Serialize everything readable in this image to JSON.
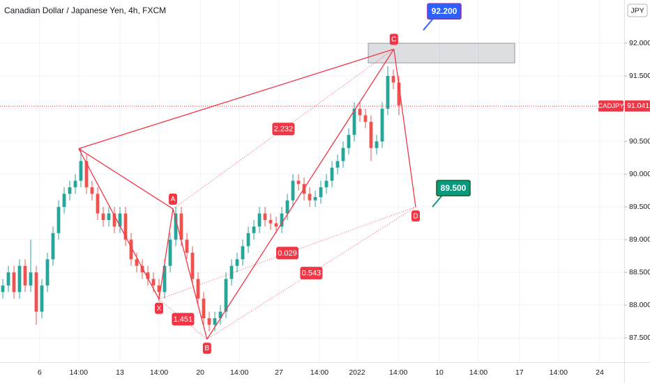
{
  "chart_data": {
    "type": "candlestick",
    "title": "Canadian Dollar / Japanese Yen, 4h, FXCM",
    "currency": "JPY",
    "up_color": "#26a69a",
    "down_color": "#ef5350",
    "xlim": [
      -0.5,
      111.375
    ],
    "xticks": [
      {
        "value": 6.6,
        "label": "6"
      },
      {
        "value": 13.6,
        "label": "14:00"
      },
      {
        "value": 21,
        "label": "13"
      },
      {
        "value": 28,
        "label": "14:00"
      },
      {
        "value": 35.4,
        "label": "20"
      },
      {
        "value": 42.4,
        "label": "14:00"
      },
      {
        "value": 49.5,
        "label": "27"
      },
      {
        "value": 56.75,
        "label": "14:00"
      },
      {
        "value": 63.5,
        "label": "2022"
      },
      {
        "value": 70.9,
        "label": "14:00"
      },
      {
        "value": 78.25,
        "label": "10"
      },
      {
        "value": 85.25,
        "label": "14:00"
      },
      {
        "value": 92.6,
        "label": "17"
      },
      {
        "value": 99.6,
        "label": "14:00"
      },
      {
        "value": 107,
        "label": "24"
      }
    ],
    "ylim": [
      87.13,
      92.66
    ],
    "yticks": [
      {
        "value": 87.5,
        "label": "87.500"
      },
      {
        "value": 88,
        "label": "88.000"
      },
      {
        "value": 88.5,
        "label": "88.500"
      },
      {
        "value": 89,
        "label": "89.000"
      },
      {
        "value": 89.5,
        "label": "89.500"
      },
      {
        "value": 90,
        "label": "90.000"
      },
      {
        "value": 90.5,
        "label": "90.500"
      },
      {
        "value": 91,
        "label": "91.000"
      },
      {
        "value": 91.5,
        "label": "91.500"
      },
      {
        "value": 92,
        "label": "92.000"
      }
    ],
    "x": [
      0,
      1,
      2,
      3,
      4,
      5,
      6,
      7,
      8,
      9,
      10,
      11,
      12,
      13,
      14,
      15,
      16,
      17,
      18,
      19,
      20,
      21,
      22,
      23,
      24,
      25,
      26,
      27,
      28,
      29,
      30,
      31,
      32,
      33,
      34,
      35,
      36,
      37,
      38,
      39,
      40,
      41,
      42,
      43,
      44,
      45,
      46,
      47,
      48,
      49,
      50,
      51,
      52,
      53,
      54,
      55,
      56,
      57,
      58,
      59,
      60,
      61,
      62,
      63,
      64,
      65,
      66,
      67,
      68,
      69,
      70,
      71
    ],
    "open": [
      88.2,
      88.3,
      88.5,
      88.2,
      88.6,
      88.3,
      88.5,
      87.9,
      88.3,
      88.7,
      89.1,
      89.5,
      89.7,
      89.8,
      89.9,
      90.2,
      89.8,
      89.7,
      89.4,
      89.3,
      89.4,
      89.2,
      89.4,
      89.0,
      88.7,
      88.6,
      88.5,
      88.4,
      88.3,
      88.2,
      88.6,
      89.0,
      89.4,
      89.0,
      88.8,
      88.4,
      88.1,
      87.8,
      87.7,
      87.8,
      87.9,
      88.4,
      88.6,
      88.7,
      88.9,
      89.1,
      89.2,
      89.4,
      89.3,
      89.25,
      89.2,
      89.4,
      89.6,
      89.9,
      89.85,
      89.7,
      89.6,
      89.65,
      89.8,
      89.9,
      90.1,
      90.2,
      90.4,
      90.6,
      91.0,
      90.9,
      90.8,
      90.4,
      90.5,
      91.0,
      91.5,
      91.4
    ],
    "high": [
      88.4,
      88.6,
      88.6,
      88.7,
      88.7,
      89.0,
      88.6,
      88.4,
      88.8,
      89.2,
      89.6,
      89.8,
      89.9,
      90.0,
      90.4,
      90.3,
      89.9,
      89.8,
      89.5,
      89.5,
      89.5,
      89.5,
      89.5,
      89.1,
      88.8,
      88.7,
      88.6,
      88.5,
      88.4,
      88.7,
      89.1,
      89.5,
      89.5,
      89.1,
      88.9,
      88.5,
      88.2,
      87.9,
      87.9,
      88.0,
      88.5,
      88.7,
      88.8,
      89.0,
      89.2,
      89.3,
      89.5,
      89.5,
      89.4,
      89.35,
      89.5,
      89.7,
      90.0,
      90.0,
      89.95,
      89.8,
      89.75,
      89.9,
      90.0,
      90.2,
      90.3,
      90.5,
      90.7,
      91.1,
      91.1,
      91.0,
      90.9,
      90.6,
      91.1,
      91.65,
      91.6,
      91.5
    ],
    "low": [
      88.1,
      88.2,
      88.1,
      88.1,
      88.2,
      88.2,
      87.7,
      87.8,
      88.2,
      88.6,
      89.0,
      89.4,
      89.6,
      89.7,
      89.8,
      89.7,
      89.6,
      89.3,
      89.2,
      89.2,
      89.1,
      89.1,
      88.9,
      88.6,
      88.5,
      88.4,
      88.3,
      88.2,
      88.05,
      88.1,
      88.5,
      88.9,
      88.9,
      88.7,
      88.3,
      88.0,
      87.7,
      87.6,
      87.6,
      87.7,
      87.8,
      88.3,
      88.5,
      88.6,
      88.8,
      89.0,
      89.1,
      89.2,
      89.15,
      89.1,
      89.1,
      89.3,
      89.5,
      89.75,
      89.6,
      89.5,
      89.5,
      89.55,
      89.7,
      89.8,
      90.0,
      90.1,
      90.3,
      90.5,
      90.8,
      90.7,
      90.2,
      90.3,
      90.4,
      90.9,
      91.3,
      90.9
    ],
    "close": [
      88.3,
      88.5,
      88.2,
      88.6,
      88.3,
      88.5,
      87.9,
      88.3,
      88.7,
      89.1,
      89.5,
      89.7,
      89.8,
      89.9,
      90.2,
      89.8,
      89.7,
      89.4,
      89.3,
      89.4,
      89.2,
      89.4,
      89.0,
      88.7,
      88.6,
      88.5,
      88.4,
      88.3,
      88.2,
      88.6,
      89.0,
      89.4,
      89.0,
      88.8,
      88.4,
      88.1,
      87.8,
      87.7,
      87.8,
      87.9,
      88.4,
      88.6,
      88.7,
      88.9,
      89.1,
      89.2,
      89.4,
      89.3,
      89.25,
      89.2,
      89.4,
      89.6,
      89.9,
      89.85,
      89.7,
      89.6,
      89.65,
      89.8,
      89.9,
      90.1,
      90.2,
      90.4,
      90.6,
      91.0,
      90.9,
      90.8,
      90.4,
      90.5,
      91.0,
      91.5,
      91.4,
      91.05
    ],
    "current_price": {
      "name": "CADJPY",
      "value": 91.041,
      "label": "91.041"
    },
    "zone": [
      91.7,
      92.0
    ],
    "pattern": {
      "color": "#f23645",
      "points": [
        {
          "x": 13.6,
          "y": 90.39
        },
        {
          "label": "X",
          "x": 28,
          "y": 88.09
        },
        {
          "label": "A",
          "x": 30.5,
          "y": 89.47
        },
        {
          "label": "B",
          "x": 36.6,
          "y": 87.48
        },
        {
          "label": "C",
          "x": 70.1,
          "y": 91.91
        },
        {
          "label": "D",
          "x": 74,
          "y": 89.5
        }
      ],
      "ratios": [
        "2.232",
        "1.451",
        "0.029",
        "0.543"
      ]
    },
    "targets": [
      {
        "label": "92.200",
        "value": 92.2,
        "color": "#2962ff"
      },
      {
        "label": "89.500",
        "value": 89.5,
        "color": "#089981"
      }
    ]
  }
}
